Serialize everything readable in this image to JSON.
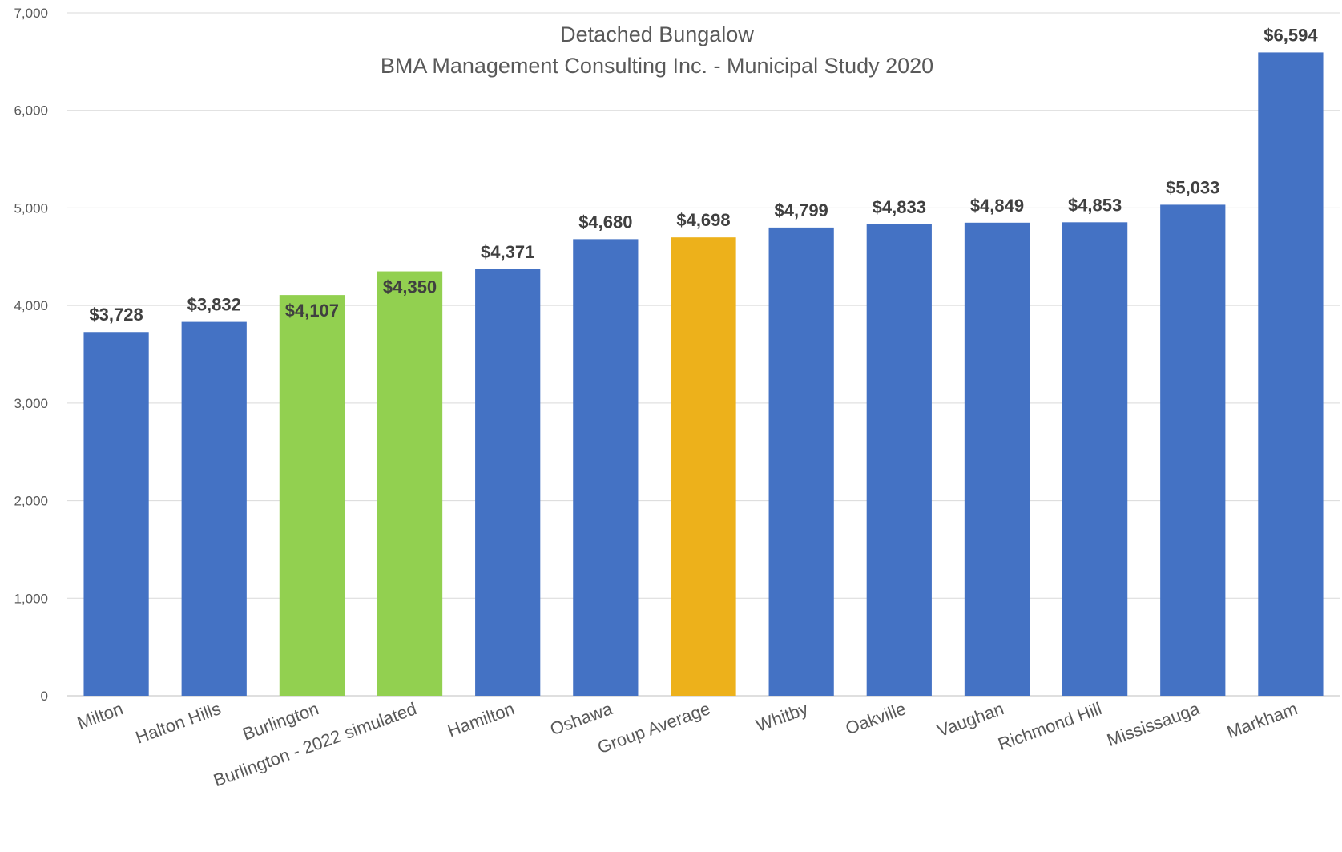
{
  "chart_data": {
    "type": "bar",
    "title": "Detached Bungalow",
    "subtitle": "BMA Management Consulting Inc. - Municipal Study 2020",
    "xlabel": "",
    "ylabel": "",
    "ylim": [
      0,
      7000
    ],
    "yticks": [
      0,
      1000,
      2000,
      3000,
      4000,
      5000,
      6000,
      7000
    ],
    "ytick_labels": [
      "0",
      "1,000",
      "2,000",
      "3,000",
      "4,000",
      "5,000",
      "6,000",
      "7,000"
    ],
    "grid": true,
    "legend": "none",
    "categories": [
      "Milton",
      "Halton Hills",
      "Burlington",
      "Burlington - 2022 simulated",
      "Hamilton",
      "Oshawa",
      "Group Average",
      "Whitby",
      "Oakville",
      "Vaughan",
      "Richmond Hill",
      "Mississauga",
      "Markham"
    ],
    "values": [
      3728,
      3832,
      4107,
      4350,
      4371,
      4680,
      4698,
      4799,
      4833,
      4849,
      4853,
      5033,
      6594
    ],
    "data_labels": [
      "$3,728",
      "$3,832",
      "$4,107",
      "$4,350",
      "$4,371",
      "$4,680",
      "$4,698",
      "$4,799",
      "$4,833",
      "$4,849",
      "$4,853",
      "$5,033",
      "$6,594"
    ],
    "bar_colors": [
      "#4472c4",
      "#4472c4",
      "#92d050",
      "#92d050",
      "#4472c4",
      "#4472c4",
      "#edb11b",
      "#4472c4",
      "#4472c4",
      "#4472c4",
      "#4472c4",
      "#4472c4",
      "#4472c4"
    ]
  }
}
